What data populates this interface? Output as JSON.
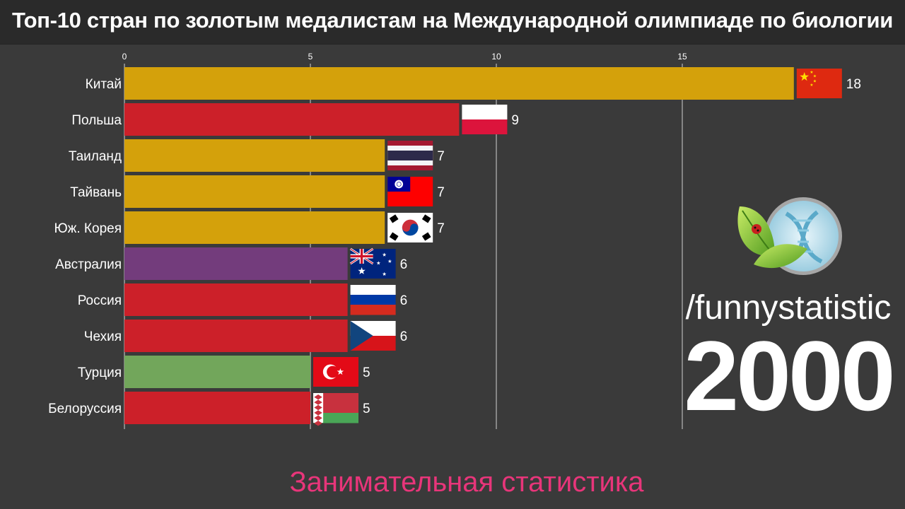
{
  "title": "Топ-10 стран по золотым медалистам на Международной олимпиаде по биологии",
  "channel": "/funnystatistic",
  "year": "2000",
  "subtitle": "Занимательная статистика",
  "chart_data": {
    "type": "bar",
    "orientation": "horizontal",
    "title": "Топ-10 стран по золотым медалистам на Международной олимпиаде по биологии",
    "categories": [
      "Китай",
      "Польша",
      "Таиланд",
      "Тайвань",
      "Юж. Корея",
      "Австралия",
      "Россия",
      "Чехия",
      "Турция",
      "Белоруссия"
    ],
    "values": [
      18,
      9,
      7,
      7,
      7,
      6,
      6,
      6,
      5,
      5
    ],
    "flags": [
      "china",
      "poland",
      "thailand",
      "taiwan",
      "south-korea",
      "australia",
      "russia",
      "czechia",
      "turkey",
      "belarus"
    ],
    "colors": [
      "#d4a10b",
      "#cc2029",
      "#d4a10b",
      "#d4a10b",
      "#d4a10b",
      "#733c7c",
      "#cc2029",
      "#cc2029",
      "#72a65b",
      "#cc2029"
    ],
    "x_ticks": [
      0,
      5,
      10,
      15
    ],
    "xlim": [
      0,
      20
    ],
    "grid": true,
    "xlabel": "",
    "ylabel": ""
  }
}
